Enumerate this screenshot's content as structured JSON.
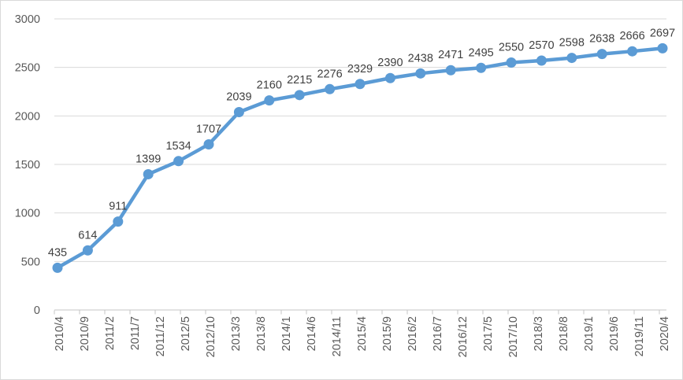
{
  "chart_data": {
    "type": "line",
    "title": "",
    "xlabel": "",
    "ylabel": "",
    "x_labels": [
      "2010/4",
      "2010/9",
      "2011/2",
      "2011/7",
      "2011/12",
      "2012/5",
      "2012/10",
      "2013/3",
      "2013/8",
      "2014/1",
      "2014/6",
      "2014/11",
      "2015/4",
      "2015/9",
      "2016/2",
      "2016/7",
      "2016/12",
      "2017/5",
      "2017/10",
      "2018/3",
      "2018/8",
      "2019/1",
      "2019/6",
      "2019/11",
      "2020/4"
    ],
    "values": [
      435,
      614,
      911,
      1399,
      1534,
      1707,
      2039,
      2160,
      2215,
      2276,
      2329,
      2390,
      2438,
      2471,
      2495,
      2550,
      2570,
      2598,
      2638,
      2666,
      2697
    ],
    "ylim": [
      0,
      3000
    ],
    "y_ticks": [
      0,
      500,
      1000,
      1500,
      2000,
      2500,
      3000
    ],
    "grid": true,
    "legend": "none",
    "marker": "circle",
    "data_labels_shown": true,
    "colors": {
      "line": "#5B9BD5",
      "marker": "#5B9BD5",
      "data_label": "#404040",
      "axis_label": "#595959",
      "gridline": "#D9D9D9",
      "axis_line": "#C6C6C6",
      "border": "#D9D9D9",
      "background": "#FFFFFF"
    }
  }
}
